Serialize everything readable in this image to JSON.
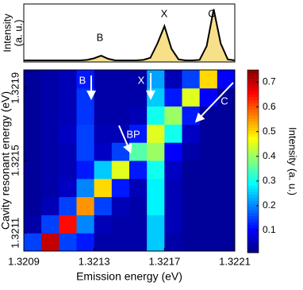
{
  "chart_data": [
    {
      "type": "line",
      "ylabel_lines": [
        "Intensity",
        "(a. u.)"
      ],
      "x": [
        1.3209,
        1.32094,
        1.32098,
        1.32102,
        1.32106,
        1.3211,
        1.32114,
        1.32118,
        1.32122,
        1.32126,
        1.3213,
        1.32134,
        1.32138,
        1.32142,
        1.32146,
        1.3215,
        1.32154,
        1.32158,
        1.32162,
        1.32166,
        1.3217,
        1.32174,
        1.32178,
        1.32182,
        1.32186,
        1.3219,
        1.32194,
        1.32198,
        1.32202,
        1.32206,
        1.3221
      ],
      "values": [
        0.03,
        0.03,
        0.03,
        0.03,
        0.03,
        0.03,
        0.03,
        0.03,
        0.03,
        0.04,
        0.07,
        0.12,
        0.06,
        0.03,
        0.03,
        0.03,
        0.03,
        0.04,
        0.08,
        0.35,
        0.68,
        0.25,
        0.05,
        0.03,
        0.03,
        0.04,
        0.3,
        1.0,
        0.35,
        0.05,
        0.03
      ],
      "xlim": [
        1.3209,
        1.3221
      ],
      "ylim": [
        0,
        1.1
      ],
      "color": "#000000",
      "fill": "#f7e08a",
      "annotations": [
        "B",
        "X",
        "C"
      ]
    },
    {
      "type": "heatmap",
      "xlabel": "Emission energy (eV)",
      "ylabel": "Cavity resonant energy (eV)",
      "x": [
        1.32095,
        1.32105,
        1.32115,
        1.32125,
        1.32135,
        1.32145,
        1.32155,
        1.32165,
        1.32175,
        1.32185,
        1.32195,
        1.32205
      ],
      "y": [
        1.32105,
        1.32115,
        1.32125,
        1.32135,
        1.32145,
        1.32155,
        1.32165,
        1.32175,
        1.32185,
        1.32195
      ],
      "z": [
        [
          0.15,
          0.7,
          0.15,
          0.12,
          0.04,
          0.04,
          0.04,
          0.25,
          0.04,
          0.03,
          0.03,
          0.03
        ],
        [
          0.04,
          0.15,
          0.65,
          0.2,
          0.05,
          0.04,
          0.04,
          0.25,
          0.05,
          0.03,
          0.03,
          0.03
        ],
        [
          0.03,
          0.05,
          0.15,
          0.55,
          0.15,
          0.05,
          0.04,
          0.28,
          0.05,
          0.03,
          0.03,
          0.03
        ],
        [
          0.03,
          0.04,
          0.06,
          0.2,
          0.5,
          0.12,
          0.05,
          0.28,
          0.05,
          0.03,
          0.03,
          0.03
        ],
        [
          0.03,
          0.04,
          0.05,
          0.12,
          0.25,
          0.45,
          0.12,
          0.3,
          0.06,
          0.03,
          0.03,
          0.03
        ],
        [
          0.03,
          0.04,
          0.05,
          0.15,
          0.06,
          0.15,
          0.35,
          0.4,
          0.1,
          0.04,
          0.03,
          0.03
        ],
        [
          0.03,
          0.04,
          0.06,
          0.15,
          0.05,
          0.05,
          0.12,
          0.45,
          0.3,
          0.06,
          0.03,
          0.03
        ],
        [
          0.03,
          0.04,
          0.05,
          0.14,
          0.04,
          0.04,
          0.05,
          0.3,
          0.4,
          0.12,
          0.03,
          0.03
        ],
        [
          0.03,
          0.04,
          0.05,
          0.14,
          0.04,
          0.04,
          0.04,
          0.25,
          0.12,
          0.45,
          0.1,
          0.03
        ],
        [
          0.03,
          0.04,
          0.05,
          0.12,
          0.04,
          0.04,
          0.04,
          0.22,
          0.05,
          0.15,
          0.5,
          0.1
        ]
      ],
      "xlim": [
        1.3209,
        1.3221
      ],
      "ylim": [
        1.321,
        1.322
      ],
      "xticks": [
        1.3209,
        1.3213,
        1.3217,
        1.3221
      ],
      "yticks": [
        1.3211,
        1.3215,
        1.3219
      ],
      "colorbar": {
        "label": "Intensity (a. u.)",
        "clim": [
          0.01,
          0.75
        ],
        "ticks": [
          0.1,
          0.2,
          0.3,
          0.4,
          0.5,
          0.6,
          0.7
        ]
      },
      "annotations": [
        "B",
        "X",
        "BP",
        "C"
      ]
    }
  ]
}
